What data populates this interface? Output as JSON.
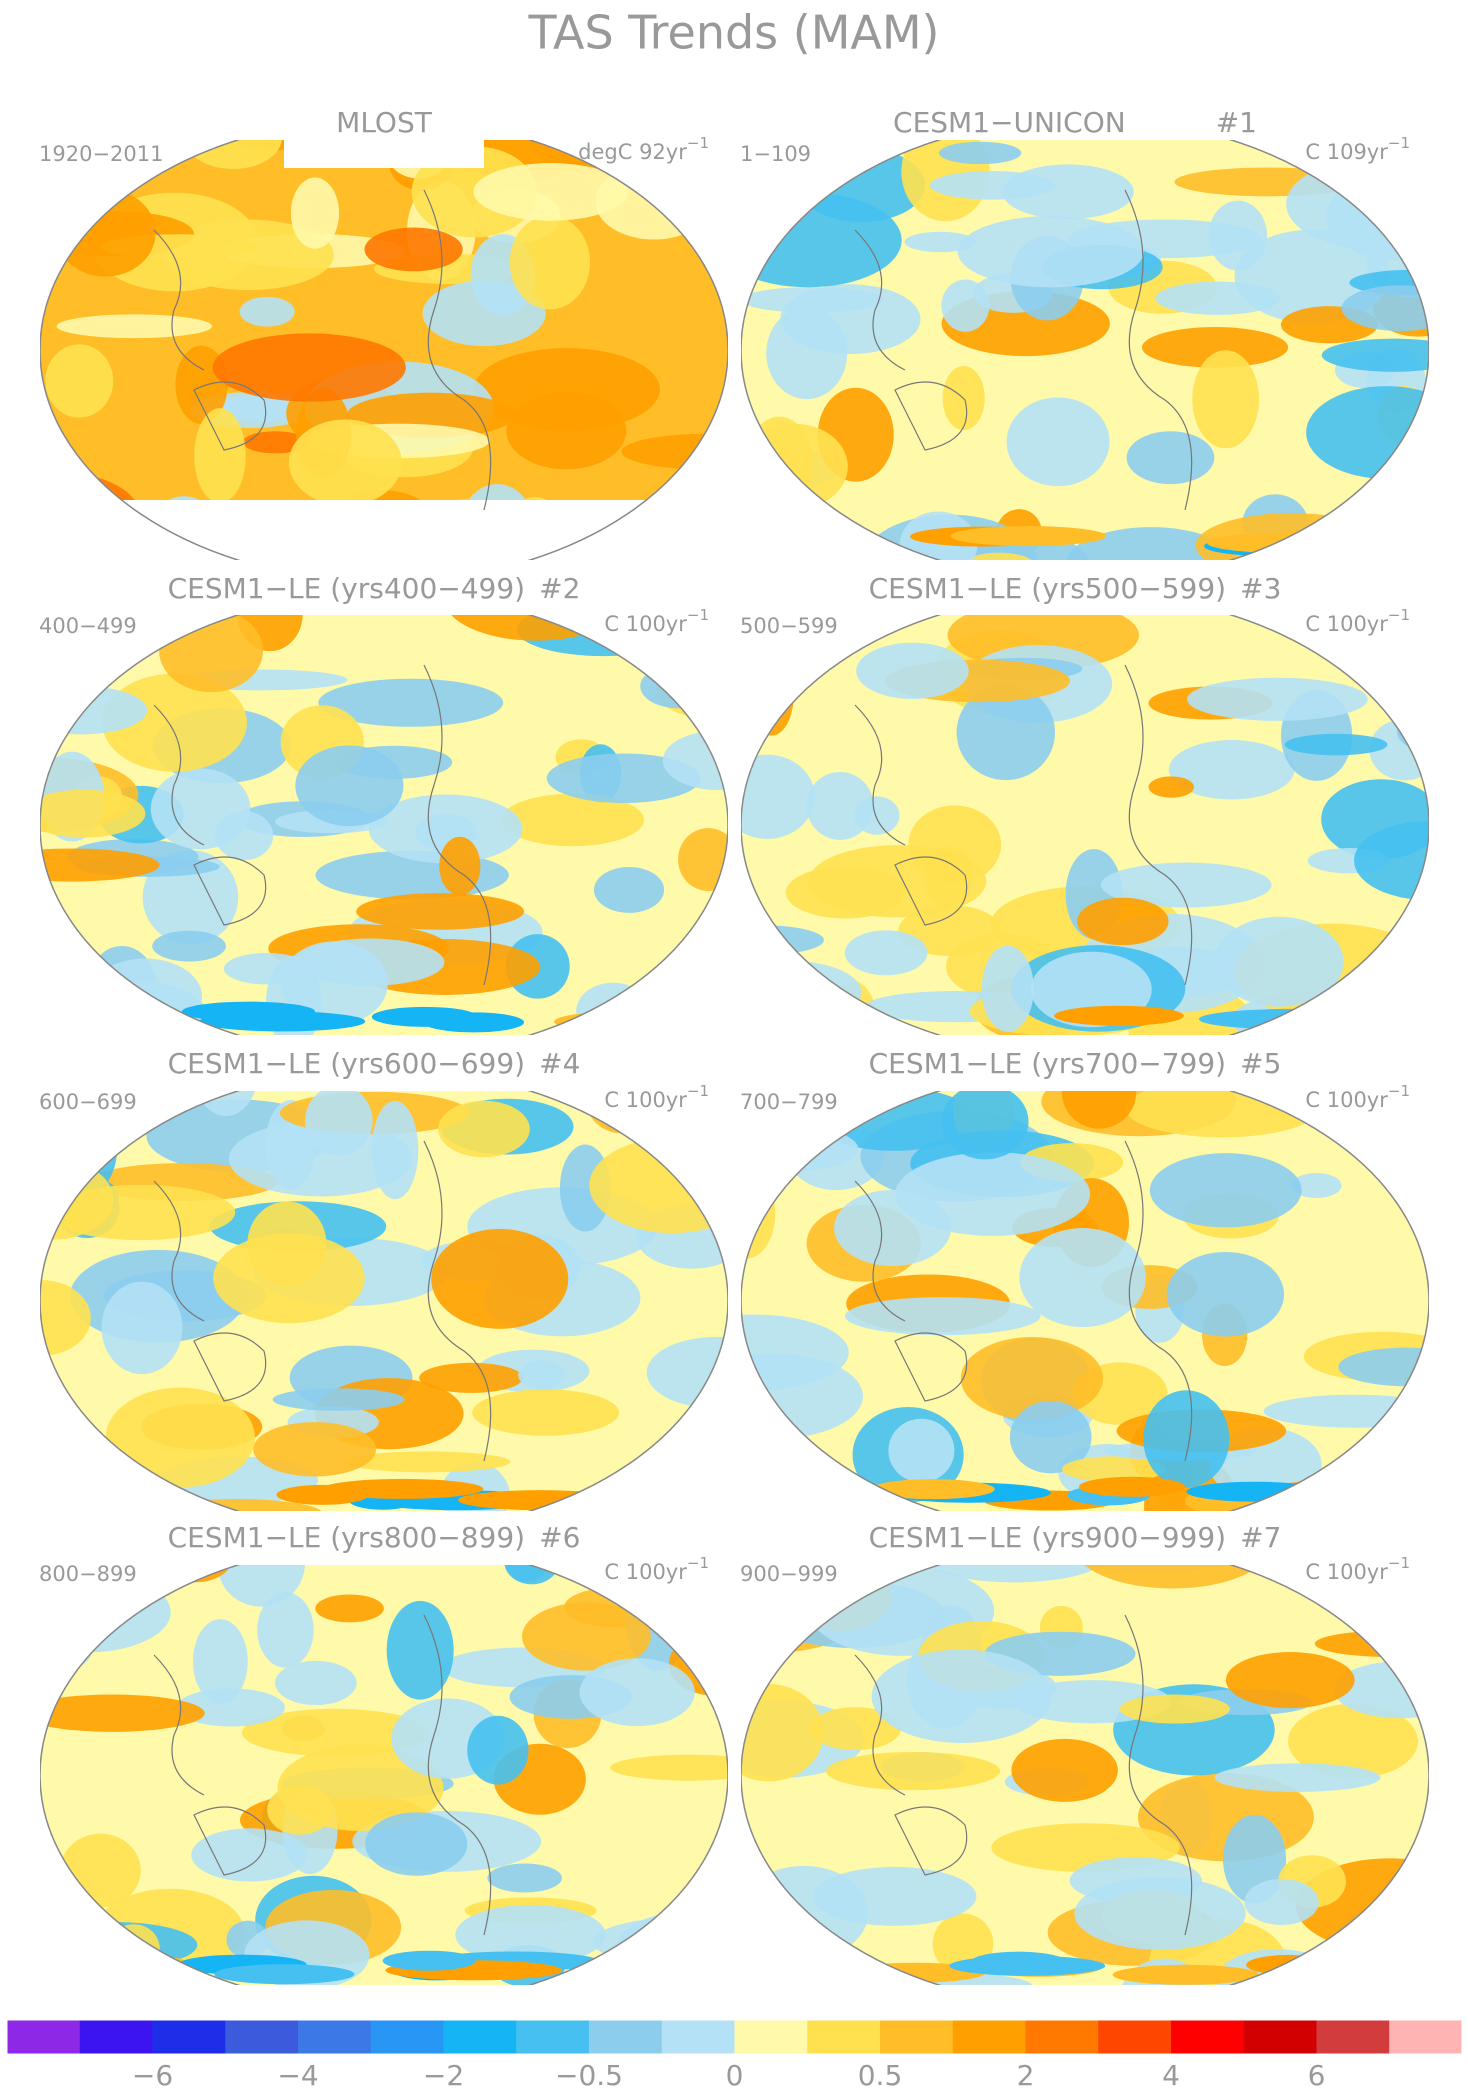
{
  "title": "TAS Trends (MAM)",
  "panels": [
    {
      "title": "MLOST",
      "left_label": "1920−2011",
      "units": "degC 92yr",
      "units_exp": "−1"
    },
    {
      "title": "CESM1−UNICON",
      "number": "#1",
      "left_label": "1−109",
      "units": "C 109yr",
      "units_exp": "−1"
    },
    {
      "title": "CESM1−LE (yrs400−499)",
      "number": "#2",
      "left_label": "400−499",
      "units": "C 100yr",
      "units_exp": "−1"
    },
    {
      "title": "CESM1−LE (yrs500−599)",
      "number": "#3",
      "left_label": "500−599",
      "units": "C 100yr",
      "units_exp": "−1"
    },
    {
      "title": "CESM1−LE (yrs600−699)",
      "number": "#4",
      "left_label": "600−699",
      "units": "C 100yr",
      "units_exp": "−1"
    },
    {
      "title": "CESM1−LE (yrs700−799)",
      "number": "#5",
      "left_label": "700−799",
      "units": "C 100yr",
      "units_exp": "−1"
    },
    {
      "title": "CESM1−LE (yrs800−899)",
      "number": "#6",
      "left_label": "800−899",
      "units": "C 100yr",
      "units_exp": "−1"
    },
    {
      "title": "CESM1−LE (yrs900−999)",
      "number": "#7",
      "left_label": "900−999",
      "units": "C 100yr",
      "units_exp": "−1"
    }
  ],
  "colorbar": {
    "colors": [
      "#8c28e6",
      "#3c14f0",
      "#1e2ee8",
      "#3c5adc",
      "#3c78e6",
      "#2896f5",
      "#14b4f5",
      "#46c0f0",
      "#8ccdee",
      "#b4e1f5",
      "#fffaaa",
      "#ffe150",
      "#ffbe28",
      "#ffa000",
      "#ff7800",
      "#ff4600",
      "#ff0000",
      "#d20000",
      "#d23c3c",
      "#ffb4b4"
    ],
    "ticks": [
      {
        "value": -6,
        "label": "−6"
      },
      {
        "value": -4,
        "label": "−4"
      },
      {
        "value": -2,
        "label": "−2"
      },
      {
        "value": -0.5,
        "label": "−0.5"
      },
      0,
      0.5,
      2,
      4,
      6
    ]
  }
}
